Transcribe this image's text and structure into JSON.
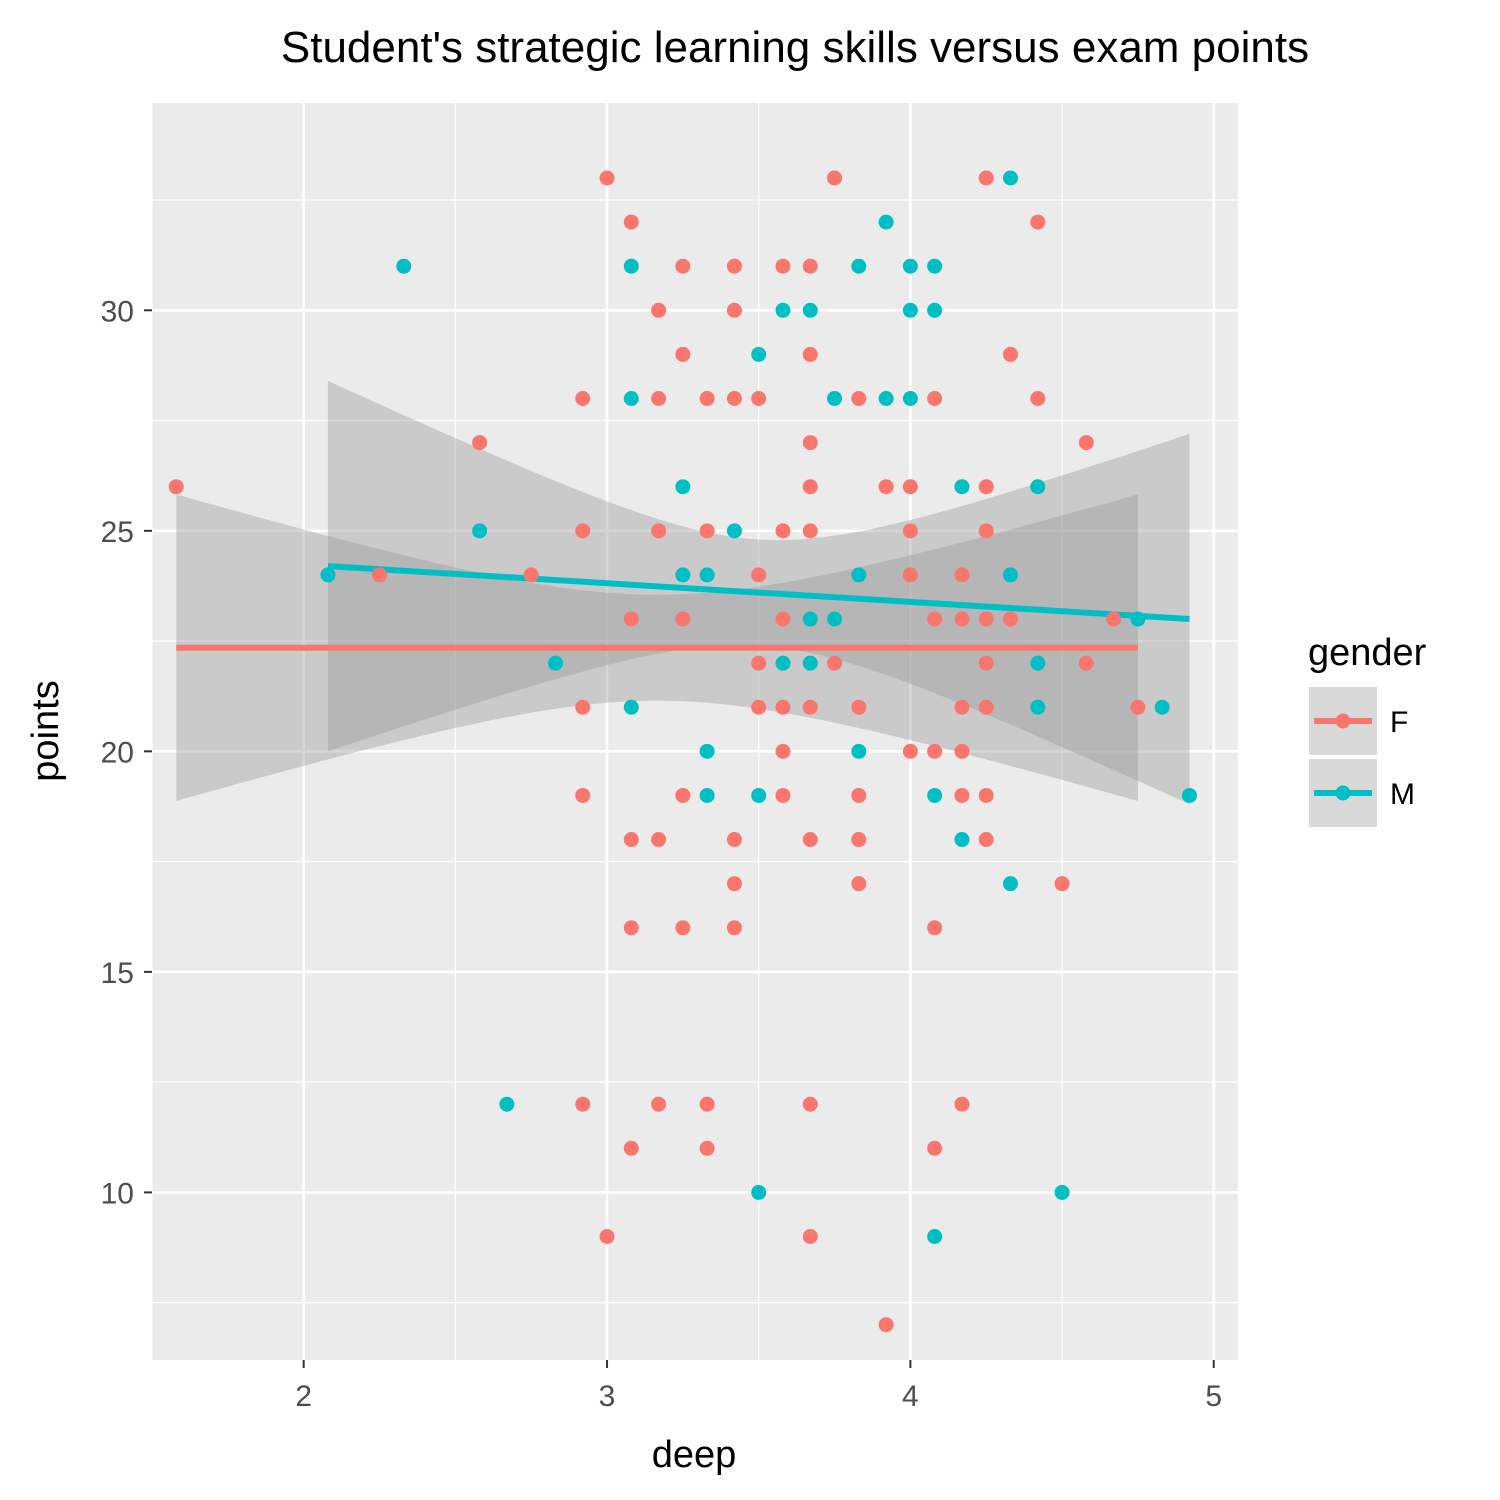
{
  "chart_data": {
    "type": "scatter",
    "title": "Student's strategic learning skills versus exam points",
    "xlabel": "deep",
    "ylabel": "points",
    "xlim": [
      1.5,
      5.08
    ],
    "ylim": [
      6.2,
      34.7
    ],
    "x_ticks": [
      2,
      3,
      4,
      5
    ],
    "x_tick_labels": [
      "2",
      "3",
      "4",
      "5"
    ],
    "y_ticks": [
      10,
      15,
      20,
      25,
      30
    ],
    "y_tick_labels": [
      "10",
      "15",
      "20",
      "25",
      "30"
    ],
    "grid": true,
    "legend": {
      "title": "gender",
      "position": "right",
      "entries": [
        {
          "label": "F",
          "color": "#F8766D"
        },
        {
          "label": "M",
          "color": "#00BFC4"
        }
      ]
    },
    "series": [
      {
        "name": "F",
        "color": "#F8766D",
        "points": [
          [
            1.58,
            26
          ],
          [
            2.25,
            24
          ],
          [
            2.58,
            27
          ],
          [
            2.75,
            24
          ],
          [
            2.92,
            28
          ],
          [
            2.92,
            25
          ],
          [
            2.92,
            21
          ],
          [
            2.92,
            19
          ],
          [
            2.92,
            12
          ],
          [
            3.0,
            33
          ],
          [
            3.0,
            9
          ],
          [
            3.08,
            32
          ],
          [
            3.08,
            23
          ],
          [
            3.08,
            18
          ],
          [
            3.08,
            16
          ],
          [
            3.08,
            11
          ],
          [
            3.17,
            30
          ],
          [
            3.17,
            28
          ],
          [
            3.17,
            25
          ],
          [
            3.17,
            18
          ],
          [
            3.17,
            12
          ],
          [
            3.25,
            31
          ],
          [
            3.25,
            29
          ],
          [
            3.25,
            23
          ],
          [
            3.25,
            19
          ],
          [
            3.25,
            16
          ],
          [
            3.33,
            28
          ],
          [
            3.33,
            25
          ],
          [
            3.33,
            12
          ],
          [
            3.33,
            11
          ],
          [
            3.42,
            31
          ],
          [
            3.42,
            30
          ],
          [
            3.42,
            28
          ],
          [
            3.42,
            18
          ],
          [
            3.42,
            17
          ],
          [
            3.42,
            16
          ],
          [
            3.5,
            28
          ],
          [
            3.5,
            24
          ],
          [
            3.5,
            22
          ],
          [
            3.5,
            21
          ],
          [
            3.58,
            31
          ],
          [
            3.58,
            25
          ],
          [
            3.58,
            23
          ],
          [
            3.58,
            21
          ],
          [
            3.58,
            20
          ],
          [
            3.58,
            19
          ],
          [
            3.67,
            31
          ],
          [
            3.67,
            29
          ],
          [
            3.67,
            27
          ],
          [
            3.67,
            26
          ],
          [
            3.67,
            25
          ],
          [
            3.67,
            21
          ],
          [
            3.67,
            18
          ],
          [
            3.67,
            12
          ],
          [
            3.67,
            9
          ],
          [
            3.75,
            33
          ],
          [
            3.75,
            22
          ],
          [
            3.83,
            28
          ],
          [
            3.83,
            21
          ],
          [
            3.83,
            19
          ],
          [
            3.83,
            18
          ],
          [
            3.83,
            17
          ],
          [
            3.92,
            26
          ],
          [
            3.92,
            7
          ],
          [
            4.0,
            26
          ],
          [
            4.0,
            25
          ],
          [
            4.0,
            24
          ],
          [
            4.0,
            20
          ],
          [
            4.08,
            28
          ],
          [
            4.08,
            23
          ],
          [
            4.08,
            20
          ],
          [
            4.08,
            16
          ],
          [
            4.08,
            11
          ],
          [
            4.17,
            24
          ],
          [
            4.17,
            23
          ],
          [
            4.17,
            21
          ],
          [
            4.17,
            20
          ],
          [
            4.17,
            19
          ],
          [
            4.17,
            12
          ],
          [
            4.25,
            33
          ],
          [
            4.25,
            26
          ],
          [
            4.25,
            25
          ],
          [
            4.25,
            23
          ],
          [
            4.25,
            22
          ],
          [
            4.25,
            21
          ],
          [
            4.25,
            19
          ],
          [
            4.25,
            18
          ],
          [
            4.33,
            29
          ],
          [
            4.33,
            23
          ],
          [
            4.42,
            32
          ],
          [
            4.42,
            28
          ],
          [
            4.5,
            17
          ],
          [
            4.58,
            27
          ],
          [
            4.58,
            22
          ],
          [
            4.67,
            23
          ],
          [
            4.75,
            21
          ]
        ],
        "trend": {
          "x": [
            1.58,
            4.75
          ],
          "y": [
            22.35,
            22.35
          ],
          "ci_lower": [
            17.9,
            19.8
          ],
          "ci_upper": [
            26.8,
            24.85
          ]
        }
      },
      {
        "name": "M",
        "color": "#00BFC4",
        "points": [
          [
            2.08,
            24
          ],
          [
            2.33,
            31
          ],
          [
            2.58,
            25
          ],
          [
            2.67,
            12
          ],
          [
            2.83,
            22
          ],
          [
            3.08,
            31
          ],
          [
            3.08,
            28
          ],
          [
            3.08,
            21
          ],
          [
            3.25,
            26
          ],
          [
            3.25,
            24
          ],
          [
            3.33,
            24
          ],
          [
            3.33,
            20
          ],
          [
            3.33,
            19
          ],
          [
            3.42,
            25
          ],
          [
            3.5,
            29
          ],
          [
            3.5,
            19
          ],
          [
            3.5,
            10
          ],
          [
            3.58,
            30
          ],
          [
            3.58,
            22
          ],
          [
            3.67,
            30
          ],
          [
            3.67,
            23
          ],
          [
            3.67,
            22
          ],
          [
            3.75,
            28
          ],
          [
            3.75,
            23
          ],
          [
            3.83,
            31
          ],
          [
            3.83,
            24
          ],
          [
            3.83,
            20
          ],
          [
            3.92,
            32
          ],
          [
            3.92,
            28
          ],
          [
            4.0,
            31
          ],
          [
            4.0,
            30
          ],
          [
            4.0,
            28
          ],
          [
            4.08,
            31
          ],
          [
            4.08,
            30
          ],
          [
            4.08,
            19
          ],
          [
            4.08,
            9
          ],
          [
            4.17,
            26
          ],
          [
            4.17,
            18
          ],
          [
            4.33,
            33
          ],
          [
            4.33,
            24
          ],
          [
            4.33,
            17
          ],
          [
            4.42,
            26
          ],
          [
            4.42,
            22
          ],
          [
            4.42,
            21
          ],
          [
            4.5,
            10
          ],
          [
            4.75,
            23
          ],
          [
            4.83,
            21
          ],
          [
            4.92,
            19
          ]
        ],
        "trend": {
          "x": [
            2.08,
            4.92
          ],
          "y": [
            24.2,
            23.0
          ],
          "ci_lower": [
            19.35,
            19.35
          ],
          "ci_upper": [
            28.95,
            26.65
          ]
        }
      }
    ]
  }
}
